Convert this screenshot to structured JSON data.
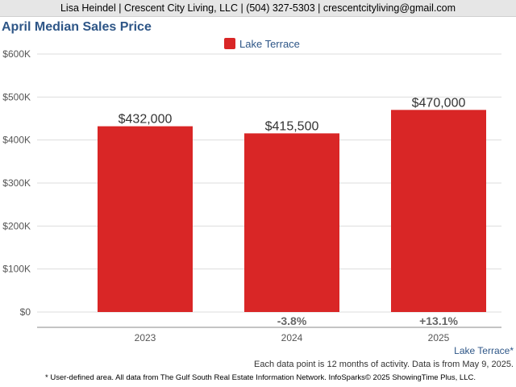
{
  "header": {
    "contact": "Lisa Heindel | Crescent City Living, LLC | (504) 327-5303 | crescentcityliving@gmail.com"
  },
  "colors": {
    "bar": "#d92626",
    "title": "#2e5687",
    "axis_text": "#555555",
    "change_text": "#666666"
  },
  "chart_data": {
    "type": "bar",
    "title": "April Median Sales Price",
    "categories": [
      "2023",
      "2024",
      "2025"
    ],
    "series": [
      {
        "name": "Lake Terrace",
        "values": [
          432000,
          415500,
          470000
        ]
      }
    ],
    "data_labels": [
      "$432,000",
      "$415,500",
      "$470,000"
    ],
    "changes": [
      "",
      "-3.8%",
      "+13.1%"
    ],
    "yticks": [
      0,
      100000,
      200000,
      300000,
      400000,
      500000,
      600000
    ],
    "ytick_labels": [
      "$0",
      "$100K",
      "$200K",
      "$300K",
      "$400K",
      "$500K",
      "$600K"
    ],
    "ylim": [
      0,
      600000
    ],
    "grid": true,
    "legend_position": "top-center"
  },
  "footer": {
    "area_label": "Lake Terrace*",
    "data_note": "Each data point is 12 months of activity. Data is from May 9, 2025.",
    "disclaimer": "* User-defined area. All data from The Gulf South Real Estate Information Network. InfoSparks© 2025 ShowingTime Plus, LLC."
  }
}
